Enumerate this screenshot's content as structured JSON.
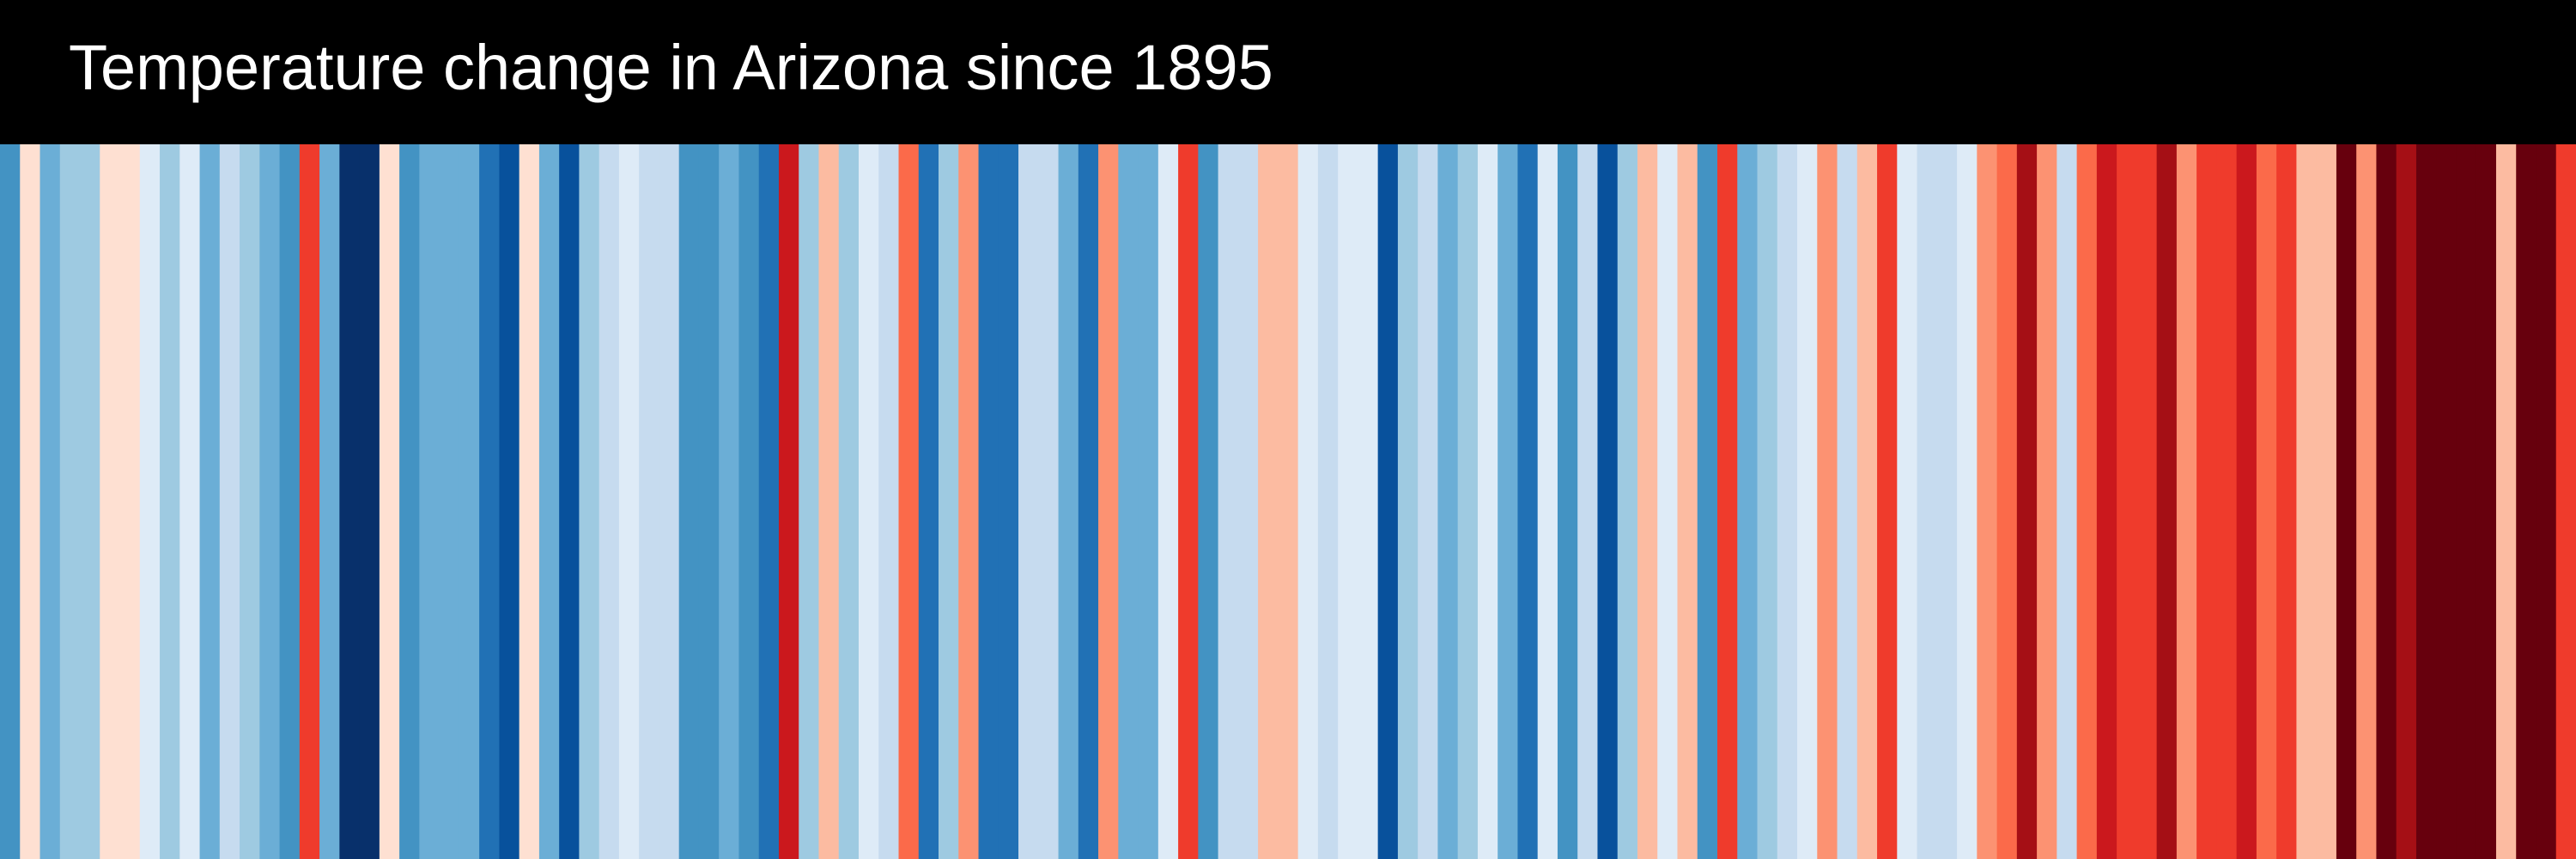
{
  "chart_data": {
    "type": "stripes",
    "title": "Temperature change in Arizona since 1895",
    "colors": [
      "#4393c3",
      "#fee0d2",
      "#6baed6",
      "#9ecae1",
      "#9ecae1",
      "#fee0d2",
      "#fee0d2",
      "#deebf7",
      "#9ecae1",
      "#deebf7",
      "#6baed6",
      "#c6dbef",
      "#9ecae1",
      "#6baed6",
      "#4393c3",
      "#ef3b2c",
      "#6baed6",
      "#08306b",
      "#08306b",
      "#fee0d2",
      "#4393c3",
      "#6baed6",
      "#6baed6",
      "#6baed6",
      "#2171b5",
      "#08519c",
      "#fee0d2",
      "#6baed6",
      "#08519c",
      "#9ecae1",
      "#c6dbef",
      "#deebf7",
      "#c6dbef",
      "#c6dbef",
      "#4393c3",
      "#4393c3",
      "#6baed6",
      "#4393c3",
      "#2171b5",
      "#cb181d",
      "#9ecae1",
      "#fcbba1",
      "#9ecae1",
      "#deebf7",
      "#c6dbef",
      "#fb6a4a",
      "#2171b5",
      "#9ecae1",
      "#fc9272",
      "#2171b5",
      "#2171b5",
      "#c6dbef",
      "#c6dbef",
      "#6baed6",
      "#2171b5",
      "#fc9272",
      "#6baed6",
      "#6baed6",
      "#deebf7",
      "#ef3b2c",
      "#4393c3",
      "#c6dbef",
      "#c6dbef",
      "#fcbba1",
      "#fcbba1",
      "#deebf7",
      "#c6dbef",
      "#deebf7",
      "#deebf7",
      "#08519c",
      "#9ecae1",
      "#c6dbef",
      "#6baed6",
      "#9ecae1",
      "#deebf7",
      "#6baed6",
      "#2171b5",
      "#deebf7",
      "#4393c3",
      "#c6dbef",
      "#08519c",
      "#9ecae1",
      "#fcbba1",
      "#deebf7",
      "#fcbba1",
      "#4393c3",
      "#ef3b2c",
      "#6baed6",
      "#9ecae1",
      "#c6dbef",
      "#deebf7",
      "#fc9272",
      "#c6dbef",
      "#fcbba1",
      "#ef3b2c",
      "#deebf7",
      "#c6dbef",
      "#c6dbef",
      "#deebf7",
      "#fc9272",
      "#fb6a4a",
      "#a50f15",
      "#fc9272",
      "#c6dbef",
      "#fb6a4a",
      "#cb181d",
      "#ef3b2c",
      "#ef3b2c",
      "#a50f15",
      "#fc9272",
      "#ef3b2c",
      "#ef3b2c",
      "#cb181d",
      "#fb6a4a",
      "#ef3b2c",
      "#fcbba1",
      "#fcbba1",
      "#67000d",
      "#fc9272",
      "#67000d",
      "#a50f15",
      "#67000d",
      "#67000d",
      "#67000d",
      "#67000d",
      "#fcbba1",
      "#67000d",
      "#67000d",
      "#ef3b2c"
    ]
  }
}
